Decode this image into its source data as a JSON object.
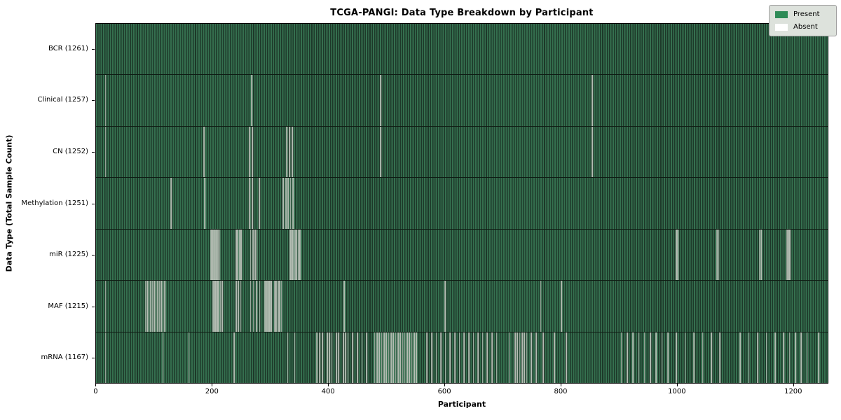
{
  "chart_data": {
    "type": "heatmap",
    "title": "TCGA-PANGI: Data Type Breakdown by Participant",
    "xlabel": "Participant",
    "ylabel": "Data Type (Total Sample Count)",
    "n_participants": 1261,
    "x_range": [
      0,
      1261
    ],
    "x_ticks": [
      0,
      200,
      400,
      600,
      800,
      1000,
      1200
    ],
    "grid": false,
    "legend": {
      "position": "upper right",
      "entries": [
        {
          "label": "Present",
          "color": "#2e8b57",
          "name": "present"
        },
        {
          "label": "Absent",
          "color": "#ffffff",
          "name": "absent"
        }
      ]
    },
    "colors": {
      "stripe_light": "#35704f",
      "stripe_dark": "#1d3829",
      "row_separator": "#0e1c13",
      "absent_line": "#b3bcb2",
      "plot_border": "#000000"
    },
    "rows": [
      {
        "label": "BCR (1261)",
        "data_type": "BCR",
        "present_count": 1261,
        "absent_count": 0,
        "absent": []
      },
      {
        "label": "Clinical (1257)",
        "data_type": "Clinical",
        "present_count": 1257,
        "absent_count": 4,
        "absent": [
          16,
          268,
          490,
          855
        ]
      },
      {
        "label": "CN (1252)",
        "data_type": "CN",
        "present_count": 1252,
        "absent_count": 9,
        "absent": [
          16,
          186,
          264,
          269,
          328,
          333,
          338,
          490,
          855
        ]
      },
      {
        "label": "Methylation (1251)",
        "data_type": "Methylation",
        "present_count": 1251,
        "absent_count": 10,
        "absent": [
          129,
          187,
          264,
          269,
          281,
          322,
          327,
          331,
          335,
          339
        ]
      },
      {
        "label": "miR (1225)",
        "data_type": "miR",
        "present_count": 1225,
        "absent_count": 36,
        "absent": [
          198,
          200,
          202,
          204,
          206,
          208,
          210,
          213,
          241,
          244,
          247,
          250,
          266,
          270,
          274,
          277,
          334,
          336,
          338,
          340,
          342,
          344,
          346,
          348,
          350,
          352,
          1000,
          1002,
          1070,
          1073,
          1143,
          1146,
          1190,
          1192,
          1194,
          1196
        ]
      },
      {
        "label": "MAF (1215)",
        "data_type": "MAF",
        "present_count": 1215,
        "absent_count": 46,
        "absent": [
          16,
          85,
          88,
          91,
          94,
          97,
          100,
          103,
          106,
          109,
          112,
          115,
          118,
          201,
          203,
          205,
          207,
          209,
          211,
          214,
          217,
          241,
          245,
          249,
          266,
          271,
          276,
          282,
          290,
          292,
          294,
          296,
          298,
          300,
          302,
          307,
          309,
          311,
          313,
          315,
          317,
          319,
          427,
          601,
          766,
          802
        ]
      },
      {
        "label": "mRNA (1167)",
        "data_type": "mRNA",
        "present_count": 1167,
        "absent_count": 94,
        "absent": [
          16,
          115,
          160,
          238,
          330,
          342,
          380,
          385,
          390,
          398,
          402,
          406,
          414,
          418,
          426,
          430,
          434,
          442,
          450,
          458,
          466,
          480,
          484,
          488,
          492,
          496,
          500,
          504,
          508,
          512,
          516,
          520,
          524,
          528,
          532,
          536,
          540,
          544,
          548,
          552,
          570,
          578,
          586,
          594,
          602,
          610,
          618,
          626,
          634,
          642,
          650,
          658,
          666,
          674,
          682,
          690,
          712,
          722,
          726,
          730,
          734,
          738,
          742,
          750,
          758,
          770,
          790,
          810,
          905,
          915,
          925,
          935,
          945,
          955,
          965,
          975,
          985,
          1000,
          1015,
          1030,
          1045,
          1060,
          1075,
          1110,
          1125,
          1140,
          1155,
          1170,
          1185,
          1195,
          1205,
          1215,
          1225,
          1245
        ]
      }
    ]
  }
}
